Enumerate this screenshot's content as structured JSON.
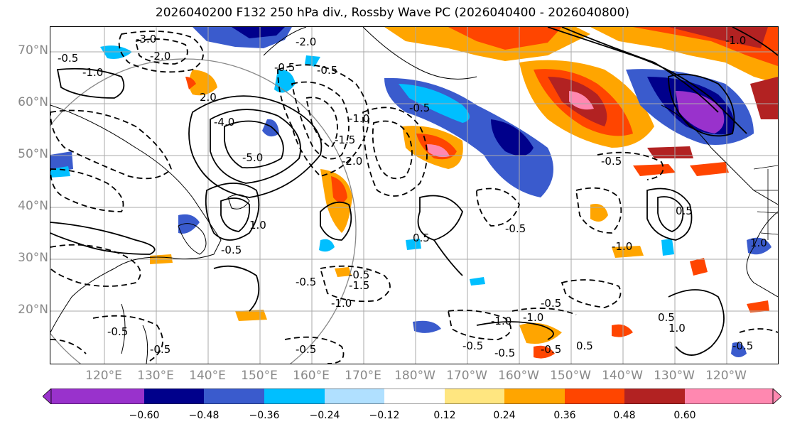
{
  "title": "2026040200 F132 250 hPa div., Rossby Wave PC (2026040400 - 2026040800)",
  "map": {
    "lat_labels": [
      "70°N",
      "60°N",
      "50°N",
      "40°N",
      "30°N",
      "20°N"
    ],
    "lon_labels": [
      "120°E",
      "130°E",
      "140°E",
      "150°E",
      "160°E",
      "170°E",
      "180°W",
      "170°W",
      "160°W",
      "150°W",
      "140°W",
      "130°W",
      "120°W"
    ],
    "contour_labels": [
      "-3.0",
      "-2.0",
      "-0.5",
      "-1.0",
      "-2.0",
      "-0.5",
      "-0.5",
      "-1.0",
      "-1.5",
      "-2.0",
      "2.0",
      "-4.0",
      "-5.0",
      "-0.5",
      "-1.0",
      "-0.5",
      "-0.5",
      "1.0",
      "-0.5",
      "0.5",
      "-0.5",
      "-0.5",
      "-1.0",
      "1.0",
      "-0.5",
      "-1.5",
      "-1.0",
      "-0.5",
      "-0.5",
      "-0.5",
      "-1.0",
      "0.5",
      "-0.5",
      "0.5",
      "1.0",
      "-0.5",
      "-0.5",
      "-0.5",
      "-1.0",
      "0.5"
    ]
  },
  "colorbar": {
    "colors": [
      "#9932cc",
      "#00008b",
      "#3a5bcd",
      "#00bfff",
      "#b0e0ff",
      "#ffffff",
      "#ffe680",
      "#ffa500",
      "#ff4500",
      "#b22222",
      "#ff88b0"
    ],
    "tick_labels": [
      "−0.60",
      "−0.48",
      "−0.36",
      "−0.24",
      "−0.12",
      "0.12",
      "0.24",
      "0.36",
      "0.48",
      "0.60"
    ]
  },
  "colors": {
    "grid": "#aaaaaa",
    "contour": "#000000",
    "circle": "#888888",
    "label_grey": "#888888"
  }
}
